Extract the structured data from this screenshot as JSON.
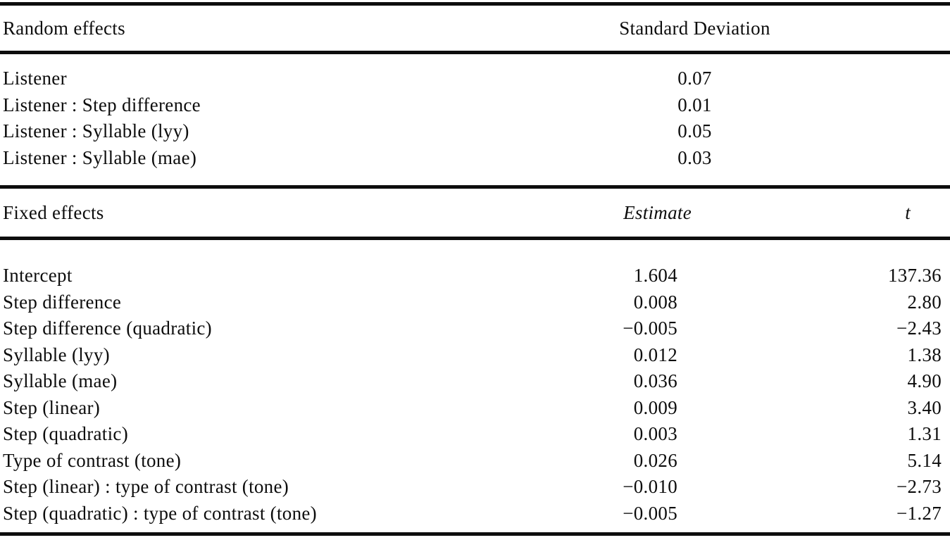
{
  "table": {
    "colors": {
      "text": "#0d0d0d",
      "rule": "#0d0d0d",
      "background": "#ffffff"
    },
    "random_section": {
      "header": {
        "label": "Random effects",
        "value_col": "Standard Deviation"
      },
      "rows": [
        {
          "label": "Listener",
          "sd": "0.07"
        },
        {
          "label": "Listener : Step difference",
          "sd": "0.01"
        },
        {
          "label": "Listener : Syllable (lyy)",
          "sd": "0.05"
        },
        {
          "label": "Listener : Syllable (mae)",
          "sd": "0.03"
        }
      ]
    },
    "fixed_section": {
      "header": {
        "label": "Fixed effects",
        "estimate_col": "Estimate",
        "t_col": "t"
      },
      "rows": [
        {
          "label": "Intercept",
          "estimate": "1.604",
          "t": "137.36"
        },
        {
          "label": "Step difference",
          "estimate": "0.008",
          "t": "2.80"
        },
        {
          "label": "Step difference (quadratic)",
          "estimate": "−0.005",
          "t": "−2.43"
        },
        {
          "label": "Syllable (lyy)",
          "estimate": "0.012",
          "t": "1.38"
        },
        {
          "label": "Syllable (mae)",
          "estimate": "0.036",
          "t": "4.90"
        },
        {
          "label": "Step (linear)",
          "estimate": "0.009",
          "t": "3.40"
        },
        {
          "label": "Step (quadratic)",
          "estimate": "0.003",
          "t": "1.31"
        },
        {
          "label": "Type of contrast (tone)",
          "estimate": "0.026",
          "t": "5.14"
        },
        {
          "label": "Step (linear) : type of contrast (tone)",
          "estimate": "−0.010",
          "t": "−2.73"
        },
        {
          "label": "Step (quadratic) : type of contrast (tone)",
          "estimate": "−0.005",
          "t": "−1.27"
        }
      ]
    }
  }
}
